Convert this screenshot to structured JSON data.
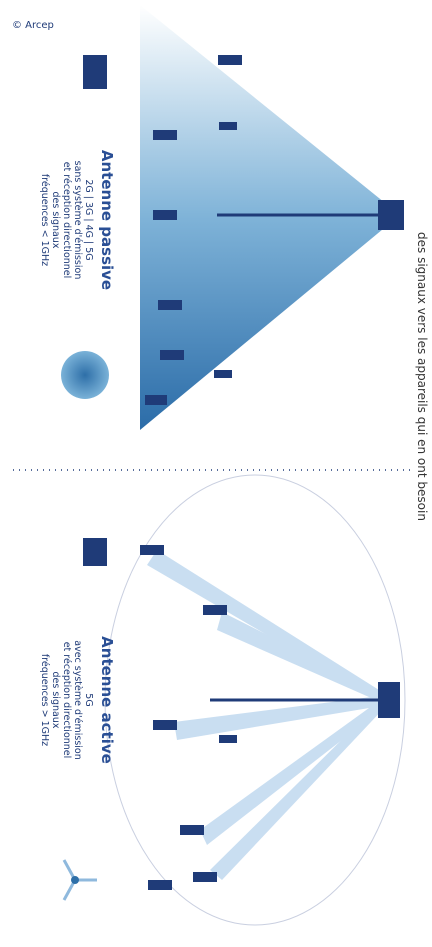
{
  "credit": "© Arcep",
  "caption": "des signaux vers les appareils qui en ont besoin",
  "passive": {
    "title": "Antenne passive",
    "lines": [
      "2G | 3G | 4G | 5G",
      "sans système d'émission",
      "et réception directionnel",
      "des signaux",
      "fréquences < 1GHz"
    ]
  },
  "active": {
    "title": "Antenne active",
    "lines": [
      "5G",
      "avec système d'émission",
      "et réception directionnel",
      "des signaux",
      "fréquences > 1GHz"
    ]
  }
}
